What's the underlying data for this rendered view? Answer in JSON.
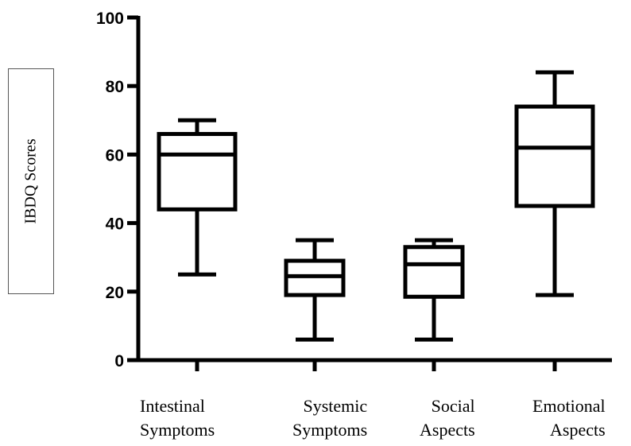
{
  "chart_data": {
    "type": "box",
    "ylabel": "IBDQ Scores",
    "ylim": [
      0,
      100
    ],
    "yticks": [
      "0",
      "20",
      "40",
      "60",
      "80",
      "100"
    ],
    "categories": [
      {
        "line1": "Intestinal",
        "line2": "Symptoms"
      },
      {
        "line1": "Systemic",
        "line2": "Symptoms"
      },
      {
        "line1": "Social",
        "line2": "Aspects"
      },
      {
        "line1": "Emotional",
        "line2": "Aspects"
      }
    ],
    "boxes": [
      {
        "min": 25,
        "q1": 44,
        "median": 60,
        "q3": 66,
        "max": 70
      },
      {
        "min": 6,
        "q1": 19,
        "median": 24.5,
        "q3": 29,
        "max": 35
      },
      {
        "min": 6,
        "q1": 18.5,
        "median": 28,
        "q3": 33,
        "max": 35
      },
      {
        "min": 19,
        "q1": 45,
        "median": 62,
        "q3": 74,
        "max": 84
      }
    ]
  }
}
